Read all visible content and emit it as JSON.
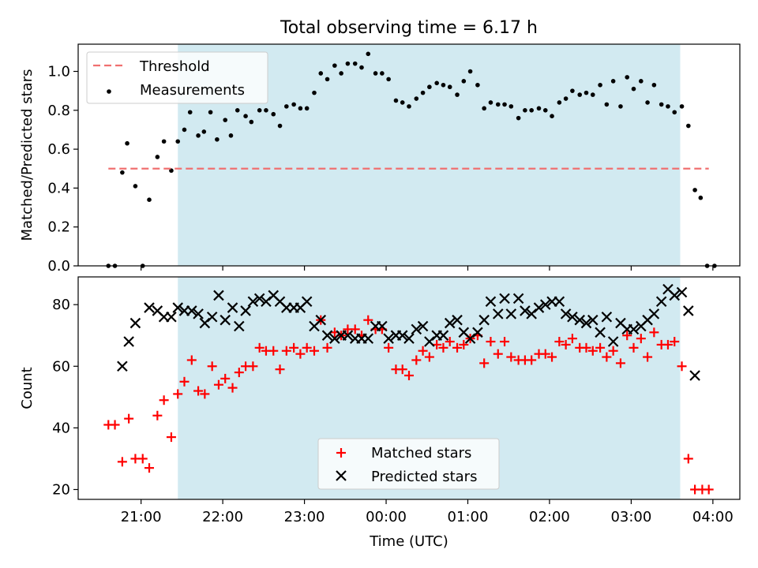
{
  "figure": {
    "title": "Total observing time = 6.17 h",
    "xlabel": "Time (UTC)",
    "x_ticks": [
      "21:00",
      "22:00",
      "23:00",
      "00:00",
      "01:00",
      "02:00",
      "03:00",
      "04:00"
    ],
    "x_tick_values": [
      21.0,
      22.0,
      23.0,
      24.0,
      25.0,
      26.0,
      27.0,
      28.0
    ],
    "x_range": [
      20.23,
      28.33
    ],
    "shaded_interval": [
      "21:27",
      "03:36"
    ],
    "shaded_interval_hours": [
      21.45,
      27.6
    ],
    "shade_color": "#add8e6"
  },
  "chart_data": [
    {
      "type": "scatter",
      "ylabel": "Matched/Predicted stars",
      "ylim": [
        0,
        1.14
      ],
      "y_ticks": [
        "0.0",
        "0.2",
        "0.4",
        "0.6",
        "0.8",
        "1.0"
      ],
      "y_tick_values": [
        0.0,
        0.2,
        0.4,
        0.6,
        0.8,
        1.0
      ],
      "legend": {
        "placement": "upper-left",
        "labels": [
          "Threshold",
          "Measurements"
        ]
      },
      "threshold": {
        "name": "Threshold",
        "value": 0.5,
        "x_range": [
          20.6,
          27.95
        ],
        "color": "#f07070"
      },
      "series": [
        {
          "name": "Measurements",
          "color": "#000000",
          "points": [
            [
              20.6,
              0.0
            ],
            [
              20.68,
              0.0
            ],
            [
              20.77,
              0.48
            ],
            [
              20.83,
              0.63
            ],
            [
              20.93,
              0.41
            ],
            [
              21.02,
              0.0
            ],
            [
              21.1,
              0.34
            ],
            [
              21.2,
              0.56
            ],
            [
              21.28,
              0.64
            ],
            [
              21.37,
              0.49
            ],
            [
              21.45,
              0.64
            ],
            [
              21.53,
              0.7
            ],
            [
              21.6,
              0.79
            ],
            [
              21.7,
              0.67
            ],
            [
              21.77,
              0.69
            ],
            [
              21.85,
              0.79
            ],
            [
              21.93,
              0.65
            ],
            [
              22.03,
              0.75
            ],
            [
              22.1,
              0.67
            ],
            [
              22.18,
              0.8
            ],
            [
              22.28,
              0.77
            ],
            [
              22.35,
              0.74
            ],
            [
              22.45,
              0.8
            ],
            [
              22.53,
              0.8
            ],
            [
              22.62,
              0.78
            ],
            [
              22.7,
              0.72
            ],
            [
              22.78,
              0.82
            ],
            [
              22.87,
              0.83
            ],
            [
              22.95,
              0.81
            ],
            [
              23.03,
              0.81
            ],
            [
              23.12,
              0.89
            ],
            [
              23.2,
              0.99
            ],
            [
              23.28,
              0.96
            ],
            [
              23.37,
              1.03
            ],
            [
              23.45,
              0.99
            ],
            [
              23.53,
              1.04
            ],
            [
              23.62,
              1.04
            ],
            [
              23.7,
              1.02
            ],
            [
              23.78,
              1.09
            ],
            [
              23.87,
              0.99
            ],
            [
              23.95,
              0.99
            ],
            [
              24.03,
              0.96
            ],
            [
              24.12,
              0.85
            ],
            [
              24.2,
              0.84
            ],
            [
              24.28,
              0.82
            ],
            [
              24.37,
              0.86
            ],
            [
              24.45,
              0.89
            ],
            [
              24.53,
              0.92
            ],
            [
              24.62,
              0.94
            ],
            [
              24.7,
              0.93
            ],
            [
              24.78,
              0.92
            ],
            [
              24.87,
              0.88
            ],
            [
              24.95,
              0.95
            ],
            [
              25.03,
              1.0
            ],
            [
              25.12,
              0.93
            ],
            [
              25.2,
              0.81
            ],
            [
              25.28,
              0.84
            ],
            [
              25.37,
              0.83
            ],
            [
              25.45,
              0.83
            ],
            [
              25.53,
              0.82
            ],
            [
              25.62,
              0.76
            ],
            [
              25.7,
              0.8
            ],
            [
              25.78,
              0.8
            ],
            [
              25.87,
              0.81
            ],
            [
              25.95,
              0.8
            ],
            [
              26.03,
              0.77
            ],
            [
              26.12,
              0.84
            ],
            [
              26.2,
              0.86
            ],
            [
              26.28,
              0.9
            ],
            [
              26.37,
              0.88
            ],
            [
              26.45,
              0.89
            ],
            [
              26.53,
              0.88
            ],
            [
              26.62,
              0.93
            ],
            [
              26.7,
              0.83
            ],
            [
              26.78,
              0.95
            ],
            [
              26.87,
              0.82
            ],
            [
              26.95,
              0.97
            ],
            [
              27.03,
              0.91
            ],
            [
              27.12,
              0.95
            ],
            [
              27.2,
              0.84
            ],
            [
              27.28,
              0.93
            ],
            [
              27.37,
              0.83
            ],
            [
              27.45,
              0.82
            ],
            [
              27.53,
              0.79
            ],
            [
              27.62,
              0.82
            ],
            [
              27.7,
              0.72
            ],
            [
              27.78,
              0.39
            ],
            [
              27.85,
              0.35
            ],
            [
              27.93,
              0.0
            ],
            [
              28.02,
              0.0
            ]
          ]
        }
      ]
    },
    {
      "type": "scatter",
      "ylabel": "Count",
      "ylim": [
        16.8,
        89.0
      ],
      "y_ticks": [
        "20",
        "40",
        "60",
        "80"
      ],
      "y_tick_values": [
        20,
        40,
        60,
        80
      ],
      "legend": {
        "placement": "lower-center",
        "labels": [
          "Matched stars",
          "Predicted stars"
        ]
      },
      "series": [
        {
          "name": "Matched stars",
          "marker": "plus",
          "color": "#ff0000",
          "points": [
            [
              20.6,
              41
            ],
            [
              20.68,
              41
            ],
            [
              20.77,
              29
            ],
            [
              20.85,
              43
            ],
            [
              20.93,
              30
            ],
            [
              21.02,
              30
            ],
            [
              21.1,
              27
            ],
            [
              21.2,
              44
            ],
            [
              21.28,
              49
            ],
            [
              21.37,
              37
            ],
            [
              21.45,
              51
            ],
            [
              21.53,
              55
            ],
            [
              21.62,
              62
            ],
            [
              21.7,
              52
            ],
            [
              21.78,
              51
            ],
            [
              21.87,
              60
            ],
            [
              21.95,
              54
            ],
            [
              22.03,
              56
            ],
            [
              22.12,
              53
            ],
            [
              22.2,
              58
            ],
            [
              22.28,
              60
            ],
            [
              22.37,
              60
            ],
            [
              22.45,
              66
            ],
            [
              22.53,
              65
            ],
            [
              22.62,
              65
            ],
            [
              22.7,
              59
            ],
            [
              22.78,
              65
            ],
            [
              22.87,
              66
            ],
            [
              22.95,
              64
            ],
            [
              23.03,
              66
            ],
            [
              23.12,
              65
            ],
            [
              23.2,
              75
            ],
            [
              23.28,
              66
            ],
            [
              23.37,
              71
            ],
            [
              23.45,
              70
            ],
            [
              23.53,
              72
            ],
            [
              23.62,
              72
            ],
            [
              23.7,
              70
            ],
            [
              23.78,
              75
            ],
            [
              23.87,
              72
            ],
            [
              23.95,
              72
            ],
            [
              24.03,
              66
            ],
            [
              24.12,
              59
            ],
            [
              24.2,
              59
            ],
            [
              24.28,
              57
            ],
            [
              24.37,
              62
            ],
            [
              24.45,
              65
            ],
            [
              24.53,
              63
            ],
            [
              24.62,
              67
            ],
            [
              24.7,
              66
            ],
            [
              24.78,
              68
            ],
            [
              24.87,
              66
            ],
            [
              24.95,
              67
            ],
            [
              25.03,
              69
            ],
            [
              25.12,
              70
            ],
            [
              25.2,
              61
            ],
            [
              25.28,
              68
            ],
            [
              25.37,
              64
            ],
            [
              25.45,
              68
            ],
            [
              25.53,
              63
            ],
            [
              25.62,
              62
            ],
            [
              25.7,
              62
            ],
            [
              25.78,
              62
            ],
            [
              25.87,
              64
            ],
            [
              25.95,
              64
            ],
            [
              26.03,
              63
            ],
            [
              26.12,
              68
            ],
            [
              26.2,
              67
            ],
            [
              26.28,
              69
            ],
            [
              26.37,
              66
            ],
            [
              26.45,
              66
            ],
            [
              26.53,
              65
            ],
            [
              26.62,
              66
            ],
            [
              26.7,
              63
            ],
            [
              26.78,
              65
            ],
            [
              26.87,
              61
            ],
            [
              26.95,
              70
            ],
            [
              27.03,
              66
            ],
            [
              27.12,
              69
            ],
            [
              27.2,
              63
            ],
            [
              27.28,
              71
            ],
            [
              27.37,
              67
            ],
            [
              27.45,
              67
            ],
            [
              27.53,
              68
            ],
            [
              27.62,
              60
            ],
            [
              27.7,
              30
            ],
            [
              27.78,
              20
            ],
            [
              27.87,
              20
            ],
            [
              27.95,
              20
            ]
          ]
        },
        {
          "name": "Predicted stars",
          "marker": "x",
          "color": "#000000",
          "points": [
            [
              20.77,
              60
            ],
            [
              20.85,
              68
            ],
            [
              20.93,
              74
            ],
            [
              21.1,
              79
            ],
            [
              21.2,
              78
            ],
            [
              21.28,
              76
            ],
            [
              21.37,
              76
            ],
            [
              21.45,
              79
            ],
            [
              21.53,
              78
            ],
            [
              21.62,
              78
            ],
            [
              21.7,
              77
            ],
            [
              21.78,
              74
            ],
            [
              21.87,
              76
            ],
            [
              21.95,
              83
            ],
            [
              22.03,
              75
            ],
            [
              22.12,
              79
            ],
            [
              22.2,
              73
            ],
            [
              22.28,
              78
            ],
            [
              22.37,
              81
            ],
            [
              22.45,
              82
            ],
            [
              22.53,
              81
            ],
            [
              22.62,
              83
            ],
            [
              22.7,
              81
            ],
            [
              22.78,
              79
            ],
            [
              22.87,
              79
            ],
            [
              22.95,
              79
            ],
            [
              23.03,
              81
            ],
            [
              23.12,
              73
            ],
            [
              23.2,
              75
            ],
            [
              23.28,
              70
            ],
            [
              23.37,
              69
            ],
            [
              23.45,
              70
            ],
            [
              23.53,
              70
            ],
            [
              23.62,
              69
            ],
            [
              23.7,
              69
            ],
            [
              23.78,
              69
            ],
            [
              23.87,
              73
            ],
            [
              23.95,
              73
            ],
            [
              24.03,
              69
            ],
            [
              24.12,
              70
            ],
            [
              24.2,
              70
            ],
            [
              24.28,
              69
            ],
            [
              24.37,
              72
            ],
            [
              24.45,
              73
            ],
            [
              24.53,
              68
            ],
            [
              24.62,
              70
            ],
            [
              24.7,
              70
            ],
            [
              24.78,
              74
            ],
            [
              24.87,
              75
            ],
            [
              24.95,
              71
            ],
            [
              25.03,
              69
            ],
            [
              25.12,
              71
            ],
            [
              25.2,
              75
            ],
            [
              25.28,
              81
            ],
            [
              25.37,
              77
            ],
            [
              25.45,
              82
            ],
            [
              25.53,
              77
            ],
            [
              25.62,
              82
            ],
            [
              25.7,
              78
            ],
            [
              25.78,
              77
            ],
            [
              25.87,
              79
            ],
            [
              25.95,
              80
            ],
            [
              26.03,
              81
            ],
            [
              26.12,
              81
            ],
            [
              26.2,
              77
            ],
            [
              26.28,
              76
            ],
            [
              26.37,
              75
            ],
            [
              26.45,
              74
            ],
            [
              26.53,
              75
            ],
            [
              26.62,
              71
            ],
            [
              26.7,
              76
            ],
            [
              26.78,
              68
            ],
            [
              26.87,
              74
            ],
            [
              26.95,
              72
            ],
            [
              27.03,
              72
            ],
            [
              27.12,
              73
            ],
            [
              27.2,
              75
            ],
            [
              27.28,
              77
            ],
            [
              27.37,
              81
            ],
            [
              27.45,
              85
            ],
            [
              27.53,
              83
            ],
            [
              27.62,
              84
            ],
            [
              27.7,
              78
            ],
            [
              27.78,
              57
            ]
          ]
        }
      ]
    }
  ]
}
